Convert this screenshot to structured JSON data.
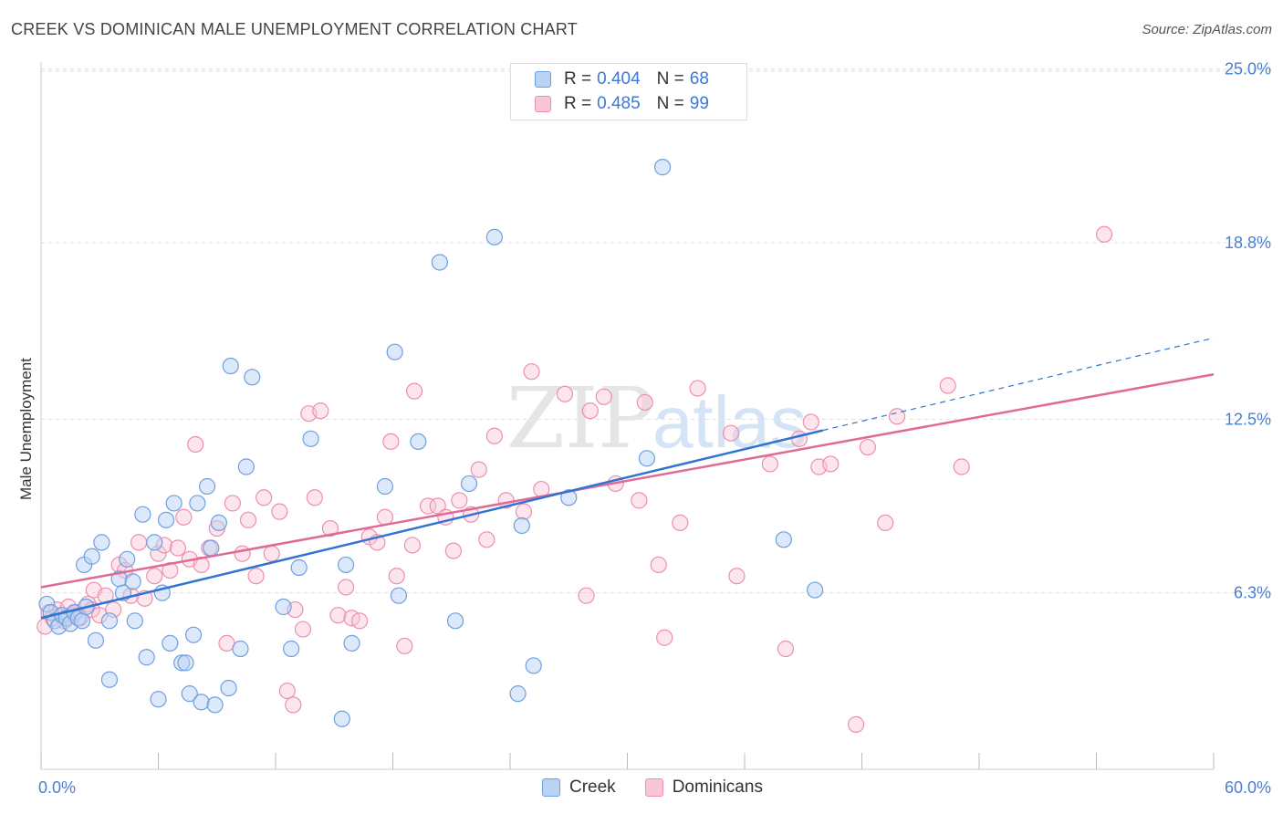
{
  "header": {
    "title": "CREEK VS DOMINICAN MALE UNEMPLOYMENT CORRELATION CHART",
    "source": "Source: ZipAtlas.com"
  },
  "watermark": {
    "zip": "ZIP",
    "atlas": "atlas"
  },
  "legend": {
    "rows": [
      {
        "r_label": "R = ",
        "r_value": "0.404",
        "n_label": "N = ",
        "n_value": "68"
      },
      {
        "r_label": "R = ",
        "r_value": "0.485",
        "n_label": "N = ",
        "n_value": "99"
      }
    ]
  },
  "bottom_legend": {
    "creek": "Creek",
    "dominicans": "Dominicans"
  },
  "colors": {
    "creek_fill": "#b9d3f5",
    "creek_stroke": "#6f9fdf",
    "creek_line": "#2f74d0",
    "dom_fill": "#f8c6d6",
    "dom_stroke": "#ec8fb0",
    "dom_line": "#e06a96",
    "tick": "#4a7fd0"
  },
  "chart_data": {
    "type": "scatter",
    "title": "CREEK VS DOMINICAN MALE UNEMPLOYMENT CORRELATION CHART",
    "ylabel": "Male Unemployment",
    "xlabel": "",
    "xlim": [
      0,
      60
    ],
    "ylim": [
      0,
      26
    ],
    "x_tick_labels": [
      {
        "value": 0,
        "label": "0.0%"
      },
      {
        "value": 60,
        "label": "60.0%"
      }
    ],
    "y_tick_labels": [
      {
        "value": 6.3,
        "label": "6.3%"
      },
      {
        "value": 12.5,
        "label": "12.5%"
      },
      {
        "value": 18.8,
        "label": "18.8%"
      },
      {
        "value": 25.0,
        "label": "25.0%"
      }
    ],
    "grid": true,
    "legend_position": "top-center",
    "series": [
      {
        "name": "Creek",
        "r": 0.404,
        "n": 68,
        "trend": {
          "x0": 0,
          "y0": 5.4,
          "x1": 40,
          "y1": 12.1,
          "dash_to_x": 60,
          "dash_to_y": 15.4
        },
        "points": [
          [
            0.3,
            5.9
          ],
          [
            0.5,
            5.6
          ],
          [
            0.7,
            5.3
          ],
          [
            0.9,
            5.1
          ],
          [
            1.1,
            5.5
          ],
          [
            1.3,
            5.4
          ],
          [
            1.5,
            5.2
          ],
          [
            1.7,
            5.6
          ],
          [
            1.9,
            5.4
          ],
          [
            2.1,
            5.3
          ],
          [
            2.3,
            5.8
          ],
          [
            2.8,
            4.6
          ],
          [
            2.2,
            7.3
          ],
          [
            2.6,
            7.6
          ],
          [
            3.1,
            8.1
          ],
          [
            3.5,
            3.2
          ],
          [
            3.5,
            5.3
          ],
          [
            4.0,
            6.8
          ],
          [
            4.2,
            6.3
          ],
          [
            4.4,
            7.5
          ],
          [
            4.7,
            6.7
          ],
          [
            4.8,
            5.3
          ],
          [
            5.2,
            9.1
          ],
          [
            5.4,
            4.0
          ],
          [
            5.8,
            8.1
          ],
          [
            6.0,
            2.5
          ],
          [
            6.2,
            6.3
          ],
          [
            6.4,
            8.9
          ],
          [
            6.6,
            4.5
          ],
          [
            6.8,
            9.5
          ],
          [
            7.2,
            3.8
          ],
          [
            7.4,
            3.8
          ],
          [
            7.6,
            2.7
          ],
          [
            7.8,
            4.8
          ],
          [
            8.0,
            9.5
          ],
          [
            8.2,
            2.4
          ],
          [
            8.5,
            10.1
          ],
          [
            8.7,
            7.9
          ],
          [
            8.9,
            2.3
          ],
          [
            9.1,
            8.8
          ],
          [
            9.6,
            2.9
          ],
          [
            9.7,
            14.4
          ],
          [
            10.2,
            4.3
          ],
          [
            10.5,
            10.8
          ],
          [
            10.8,
            14.0
          ],
          [
            12.4,
            5.8
          ],
          [
            12.8,
            4.3
          ],
          [
            13.2,
            7.2
          ],
          [
            13.8,
            11.8
          ],
          [
            15.4,
            1.8
          ],
          [
            15.6,
            7.3
          ],
          [
            15.9,
            4.5
          ],
          [
            17.6,
            10.1
          ],
          [
            18.1,
            14.9
          ],
          [
            18.3,
            6.2
          ],
          [
            19.3,
            11.7
          ],
          [
            20.4,
            18.1
          ],
          [
            21.2,
            5.3
          ],
          [
            21.9,
            10.2
          ],
          [
            23.2,
            19.0
          ],
          [
            24.4,
            2.7
          ],
          [
            24.6,
            8.7
          ],
          [
            25.2,
            3.7
          ],
          [
            27.0,
            9.7
          ],
          [
            31.0,
            11.1
          ],
          [
            31.8,
            21.5
          ],
          [
            38.0,
            8.2
          ],
          [
            39.6,
            6.4
          ]
        ]
      },
      {
        "name": "Dominicans",
        "r": 0.485,
        "n": 99,
        "trend": {
          "x0": 0,
          "y0": 6.5,
          "x1": 60,
          "y1": 14.1
        },
        "points": [
          [
            0.2,
            5.1
          ],
          [
            0.4,
            5.6
          ],
          [
            0.6,
            5.4
          ],
          [
            0.8,
            5.7
          ],
          [
            1.0,
            5.5
          ],
          [
            1.2,
            5.3
          ],
          [
            1.4,
            5.8
          ],
          [
            1.6,
            5.5
          ],
          [
            1.8,
            5.6
          ],
          [
            2.0,
            5.4
          ],
          [
            2.4,
            5.9
          ],
          [
            2.6,
            5.7
          ],
          [
            2.7,
            6.4
          ],
          [
            3.0,
            5.5
          ],
          [
            3.3,
            6.2
          ],
          [
            3.7,
            5.7
          ],
          [
            4.0,
            7.3
          ],
          [
            4.3,
            7.1
          ],
          [
            4.6,
            6.2
          ],
          [
            5.0,
            8.1
          ],
          [
            5.3,
            6.1
          ],
          [
            5.8,
            6.9
          ],
          [
            6.0,
            7.7
          ],
          [
            6.3,
            8.0
          ],
          [
            6.6,
            7.1
          ],
          [
            7.0,
            7.9
          ],
          [
            7.3,
            9.0
          ],
          [
            7.6,
            7.5
          ],
          [
            7.9,
            11.6
          ],
          [
            8.2,
            7.3
          ],
          [
            8.6,
            7.9
          ],
          [
            9.0,
            8.6
          ],
          [
            9.5,
            4.5
          ],
          [
            9.8,
            9.5
          ],
          [
            10.3,
            7.7
          ],
          [
            10.6,
            8.9
          ],
          [
            11.0,
            6.9
          ],
          [
            11.4,
            9.7
          ],
          [
            11.8,
            7.7
          ],
          [
            12.2,
            9.2
          ],
          [
            12.6,
            2.8
          ],
          [
            12.9,
            2.3
          ],
          [
            13.0,
            5.7
          ],
          [
            13.4,
            5.0
          ],
          [
            13.7,
            12.7
          ],
          [
            14.0,
            9.7
          ],
          [
            14.3,
            12.8
          ],
          [
            14.8,
            8.6
          ],
          [
            15.2,
            5.5
          ],
          [
            15.6,
            6.5
          ],
          [
            15.9,
            5.4
          ],
          [
            16.3,
            5.3
          ],
          [
            16.8,
            8.3
          ],
          [
            17.2,
            8.1
          ],
          [
            17.6,
            9.0
          ],
          [
            17.9,
            11.7
          ],
          [
            18.2,
            6.9
          ],
          [
            18.6,
            4.4
          ],
          [
            19.0,
            8.0
          ],
          [
            19.1,
            13.5
          ],
          [
            19.8,
            9.4
          ],
          [
            20.3,
            9.4
          ],
          [
            20.7,
            9.0
          ],
          [
            21.1,
            7.8
          ],
          [
            21.4,
            9.6
          ],
          [
            22.0,
            9.1
          ],
          [
            22.4,
            10.7
          ],
          [
            22.8,
            8.2
          ],
          [
            23.2,
            11.9
          ],
          [
            23.8,
            9.6
          ],
          [
            24.7,
            9.2
          ],
          [
            25.1,
            14.2
          ],
          [
            25.6,
            10.0
          ],
          [
            26.8,
            13.4
          ],
          [
            27.9,
            6.2
          ],
          [
            28.1,
            12.8
          ],
          [
            28.8,
            13.3
          ],
          [
            29.4,
            10.2
          ],
          [
            30.6,
            9.6
          ],
          [
            30.9,
            13.1
          ],
          [
            31.6,
            7.3
          ],
          [
            31.9,
            4.7
          ],
          [
            32.7,
            8.8
          ],
          [
            33.6,
            13.6
          ],
          [
            35.3,
            12.0
          ],
          [
            35.6,
            6.9
          ],
          [
            37.3,
            10.9
          ],
          [
            38.1,
            4.3
          ],
          [
            38.8,
            11.8
          ],
          [
            39.4,
            12.4
          ],
          [
            39.8,
            10.8
          ],
          [
            40.4,
            10.9
          ],
          [
            41.7,
            1.6
          ],
          [
            42.3,
            11.5
          ],
          [
            43.2,
            8.8
          ],
          [
            43.8,
            12.6
          ],
          [
            46.4,
            13.7
          ],
          [
            47.1,
            10.8
          ],
          [
            54.4,
            19.1
          ]
        ]
      }
    ]
  }
}
